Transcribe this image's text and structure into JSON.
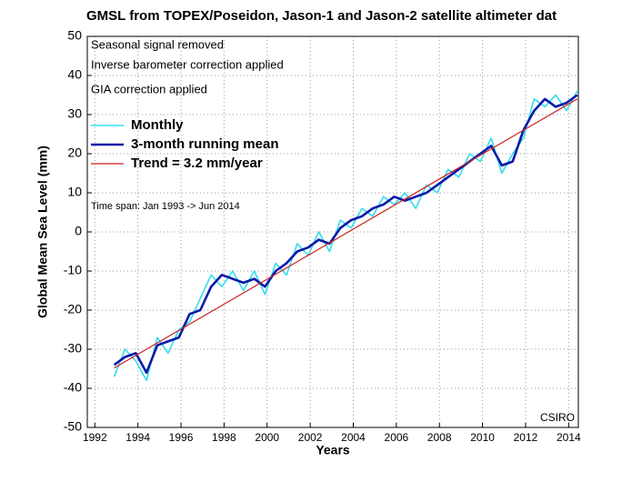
{
  "chart_data": {
    "type": "line",
    "title": "GMSL from TOPEX/Poseidon, Jason-1 and Jason-2 satellite altimeter dat",
    "xlabel": "Years",
    "ylabel": "Global Mean Sea Level (mm)",
    "annotations": [
      "Seasonal signal removed",
      "Inverse barometer correction applied",
      "GIA correction applied",
      "Time span: Jan 1993 -> Jun 2014",
      "CSIRO"
    ],
    "x": [
      1992.9,
      1993.4,
      1993.9,
      1994.4,
      1994.9,
      1995.4,
      1995.9,
      1996.4,
      1996.9,
      1997.4,
      1997.9,
      1998.4,
      1998.9,
      1999.4,
      1999.9,
      2000.4,
      2000.9,
      2001.4,
      2001.9,
      2002.4,
      2002.9,
      2003.4,
      2003.9,
      2004.4,
      2004.9,
      2005.4,
      2005.9,
      2006.4,
      2006.9,
      2007.4,
      2007.9,
      2008.4,
      2008.9,
      2009.4,
      2009.9,
      2010.4,
      2010.9,
      2011.4,
      2011.9,
      2012.4,
      2012.9,
      2013.4,
      2013.9,
      2014.4
    ],
    "series": [
      {
        "name": "Monthly",
        "color": "#33ddee",
        "values": [
          -37,
          -30,
          -33,
          -38,
          -27,
          -31,
          -25,
          -23,
          -17,
          -11,
          -14,
          -10,
          -15,
          -10,
          -16,
          -8,
          -11,
          -3,
          -6,
          0,
          -5,
          3,
          1,
          6,
          4,
          9,
          7,
          10,
          6,
          12,
          10,
          16,
          14,
          20,
          18,
          24,
          15,
          20,
          24,
          34,
          32,
          35,
          31,
          36
        ]
      },
      {
        "name": "3-month running mean",
        "color": "#0a1aa8",
        "values": [
          -34,
          -32,
          -31,
          -36,
          -29,
          -28,
          -27,
          -21,
          -20,
          -14,
          -11,
          -12,
          -13,
          -12,
          -14,
          -10,
          -8,
          -5,
          -4,
          -2,
          -3,
          1,
          3,
          4,
          6,
          7,
          9,
          8,
          9,
          10,
          12,
          14,
          16,
          18,
          20,
          22,
          17,
          18,
          26,
          31,
          34,
          32,
          33,
          35
        ]
      },
      {
        "name": "Trend = 3.2 mm/year",
        "color": "#cc2222",
        "legend_text_color": "#cc2222",
        "x": [
          1992.9,
          2014.4
        ],
        "values": [
          -34.8,
          34
        ]
      }
    ],
    "xlim": [
      1991.65,
      2014.45
    ],
    "ylim": [
      -50,
      50
    ],
    "xticks": [
      1992,
      1994,
      1996,
      1998,
      2000,
      2002,
      2004,
      2006,
      2008,
      2010,
      2012,
      2014
    ],
    "yticks": [
      -50,
      -40,
      -30,
      -20,
      -10,
      0,
      10,
      20,
      30,
      40,
      50
    ],
    "grid": true,
    "legend": "upper left"
  }
}
